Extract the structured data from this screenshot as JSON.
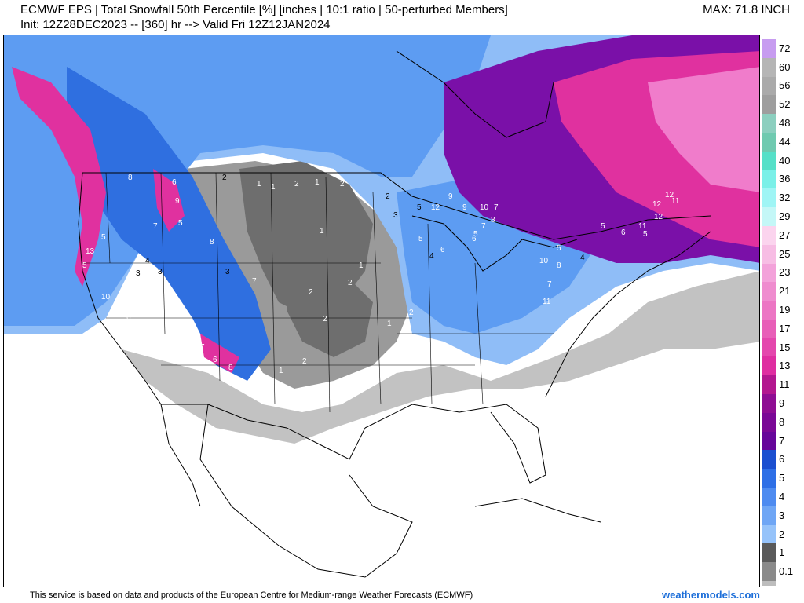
{
  "header": {
    "title_line1": "ECMWF EPS | Total Snowfall 50th Percentile [%] [inches | 10:1 ratio | 50-perturbed Members]",
    "title_line2": "Init: 12Z28DEC2023 -- [360] hr --> Valid Fri 12Z12JAN2024",
    "max_label": "MAX: 71.8 INCH"
  },
  "legend": {
    "unit": "inches",
    "levels": [
      {
        "label": "72",
        "color": "#c79cf0"
      },
      {
        "label": "60",
        "color": "#b5b5b5"
      },
      {
        "label": "56",
        "color": "#aaaaaa"
      },
      {
        "label": "52",
        "color": "#9e9e9e"
      },
      {
        "label": "48",
        "color": "#8ccfbf"
      },
      {
        "label": "44",
        "color": "#6fcab0"
      },
      {
        "label": "40",
        "color": "#56e0c8"
      },
      {
        "label": "36",
        "color": "#7af0e8"
      },
      {
        "label": "32",
        "color": "#9ff5f5"
      },
      {
        "label": "29",
        "color": "#c4f7f7"
      },
      {
        "label": "27",
        "color": "#fbd4ee"
      },
      {
        "label": "25",
        "color": "#f7bde4"
      },
      {
        "label": "23",
        "color": "#f3a2da"
      },
      {
        "label": "21",
        "color": "#ef8ccf"
      },
      {
        "label": "19",
        "color": "#ec76c4"
      },
      {
        "label": "17",
        "color": "#e85fb8"
      },
      {
        "label": "15",
        "color": "#e447ad"
      },
      {
        "label": "13",
        "color": "#df2ea1"
      },
      {
        "label": "11",
        "color": "#b3178f"
      },
      {
        "label": "9",
        "color": "#8e0d93"
      },
      {
        "label": "8",
        "color": "#7a0896"
      },
      {
        "label": "7",
        "color": "#66069a"
      },
      {
        "label": "6",
        "color": "#1b4fd0"
      },
      {
        "label": "5",
        "color": "#2e6fe6"
      },
      {
        "label": "4",
        "color": "#4e8bf0"
      },
      {
        "label": "3",
        "color": "#6fa6f5"
      },
      {
        "label": "2",
        "color": "#96c3fa"
      },
      {
        "label": "1",
        "color": "#5a5a5a"
      },
      {
        "label": "0.1",
        "color": "#8a8a8a"
      }
    ],
    "bottom_swatch_color": "#bdbdbd"
  },
  "map": {
    "colors": {
      "ocean": "#ffffff",
      "no_snow": "#ffffff",
      "light_gray": "#c2c2c2",
      "mid_gray": "#9a9a9a",
      "dark_gray": "#6e6e6e",
      "blue_light": "#8fbdf7",
      "blue_mid": "#5d9cf2",
      "blue_deep": "#2f6fe0",
      "purple": "#7a10a8",
      "magenta": "#e0319f",
      "pink": "#f07ccb",
      "border": "#000000"
    },
    "point_values": [
      {
        "t": "13"
      },
      {
        "t": "5"
      },
      {
        "t": "5"
      },
      {
        "t": "10"
      },
      {
        "t": "6"
      },
      {
        "t": "8"
      },
      {
        "t": "6"
      },
      {
        "t": "9"
      },
      {
        "t": "7"
      },
      {
        "t": "5"
      },
      {
        "t": "8"
      },
      {
        "t": "7"
      },
      {
        "t": "3"
      },
      {
        "t": "2"
      },
      {
        "t": "1"
      },
      {
        "t": "1"
      },
      {
        "t": "2"
      },
      {
        "t": "1"
      },
      {
        "t": "2"
      },
      {
        "t": "1"
      },
      {
        "t": "2"
      },
      {
        "t": "3"
      },
      {
        "t": "2"
      },
      {
        "t": "5"
      },
      {
        "t": "12"
      },
      {
        "t": "9"
      },
      {
        "t": "9"
      },
      {
        "t": "10"
      },
      {
        "t": "7"
      },
      {
        "t": "5"
      },
      {
        "t": "6"
      },
      {
        "t": "7"
      },
      {
        "t": "8"
      },
      {
        "t": "6"
      },
      {
        "t": "5"
      },
      {
        "t": "4"
      },
      {
        "t": "10"
      },
      {
        "t": "8"
      },
      {
        "t": "7"
      },
      {
        "t": "11"
      },
      {
        "t": "12"
      },
      {
        "t": "12"
      },
      {
        "t": "11"
      },
      {
        "t": "11"
      },
      {
        "t": "12"
      },
      {
        "t": "5"
      },
      {
        "t": "6"
      },
      {
        "t": "5"
      },
      {
        "t": "5"
      },
      {
        "t": "4"
      },
      {
        "t": "3"
      },
      {
        "t": "2"
      },
      {
        "t": "1"
      },
      {
        "t": "2"
      },
      {
        "t": "1"
      },
      {
        "t": "2"
      },
      {
        "t": "7"
      },
      {
        "t": "6"
      },
      {
        "t": "8"
      },
      {
        "t": "3"
      },
      {
        "t": "4"
      },
      {
        "t": "5"
      },
      {
        "t": "1"
      },
      {
        "t": "2"
      }
    ]
  },
  "footer": {
    "note": "This service is based on data and products of the European Centre for Medium-range Weather Forecasts (ECMWF)",
    "brand": "weathermodels.com"
  }
}
